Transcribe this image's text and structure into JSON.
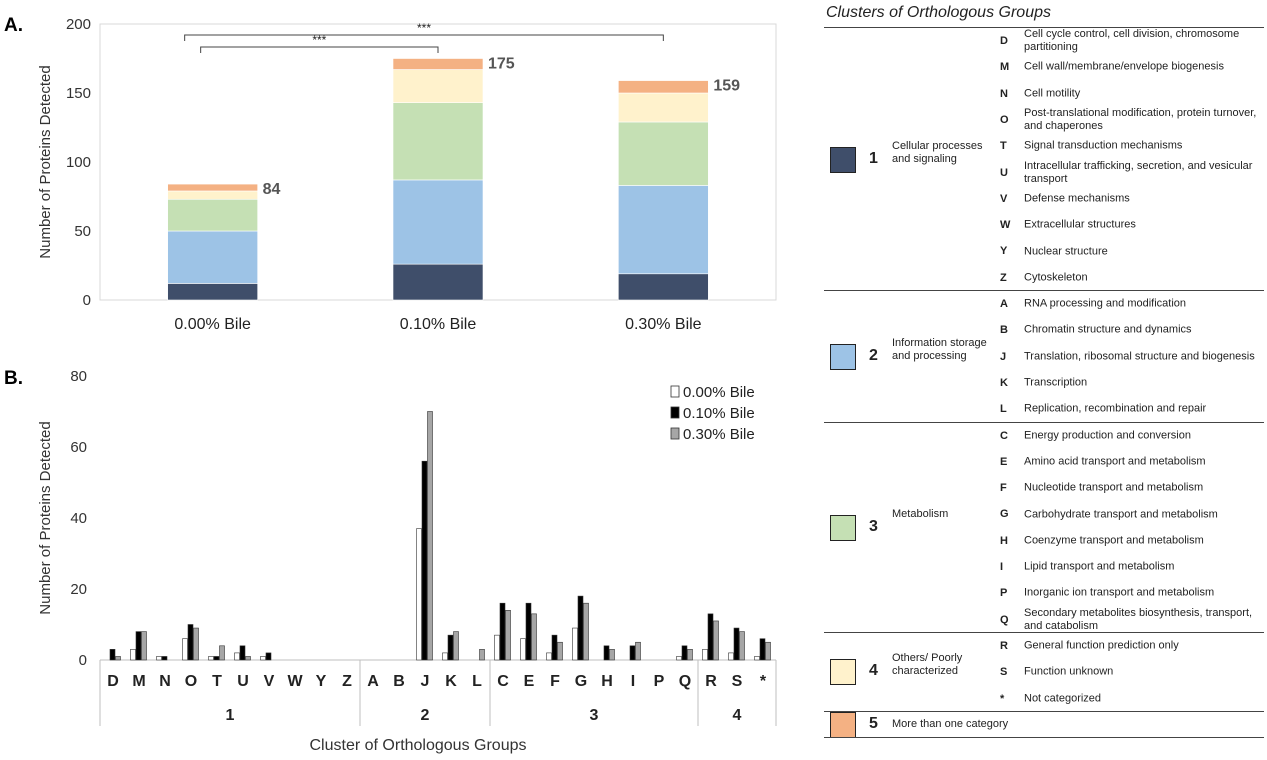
{
  "panel_a_label": "A.",
  "panel_b_label": "B.",
  "chart_data": [
    {
      "type": "bar",
      "stacked": true,
      "categories": [
        "0.00% Bile",
        "0.10% Bile",
        "0.30% Bile"
      ],
      "series": [
        {
          "name": "1",
          "color": "#3f4e6a",
          "values": [
            12,
            26,
            19
          ]
        },
        {
          "name": "2",
          "color": "#9dc3e6",
          "values": [
            38,
            61,
            64
          ]
        },
        {
          "name": "3",
          "color": "#c5e0b4",
          "values": [
            23,
            56,
            46
          ]
        },
        {
          "name": "4",
          "color": "#fff2cc",
          "values": [
            6,
            24,
            21
          ]
        },
        {
          "name": "5",
          "color": "#f4b183",
          "values": [
            5,
            8,
            9
          ]
        }
      ],
      "totals": [
        "84",
        "175",
        "159"
      ],
      "ylabel": "Number of Proteins Detected",
      "ylim": [
        0,
        200
      ],
      "yticks": [
        "0",
        "50",
        "100",
        "150",
        "200"
      ],
      "significance": [
        {
          "from": "0.00% Bile",
          "to": "0.10% Bile",
          "label": "***"
        },
        {
          "from": "0.00% Bile",
          "to": "0.30% Bile",
          "label": "***"
        }
      ]
    },
    {
      "type": "bar",
      "categories": [
        "D",
        "M",
        "N",
        "O",
        "T",
        "U",
        "V",
        "W",
        "Y",
        "Z",
        "A",
        "B",
        "J",
        "K",
        "L",
        "C",
        "E",
        "F",
        "G",
        "H",
        "I",
        "P",
        "Q",
        "R",
        "S",
        "*"
      ],
      "series": [
        {
          "name": "0.00% Bile",
          "fill": "#ffffff",
          "values": [
            0,
            3,
            1,
            6,
            1,
            2,
            1,
            0,
            0,
            0,
            0,
            0,
            37,
            2,
            0,
            7,
            6,
            2,
            9,
            0,
            0,
            0,
            1,
            3,
            2,
            1
          ]
        },
        {
          "name": "0.10% Bile",
          "fill": "#000000",
          "values": [
            3,
            8,
            1,
            10,
            1,
            4,
            2,
            0,
            0,
            0,
            0,
            0,
            56,
            7,
            0,
            16,
            16,
            7,
            18,
            4,
            4,
            0,
            4,
            13,
            9,
            6
          ]
        },
        {
          "name": "0.30% Bile",
          "fill": "#a6a6a6",
          "values": [
            1,
            8,
            0,
            9,
            4,
            1,
            0,
            0,
            0,
            0,
            0,
            0,
            70,
            8,
            3,
            14,
            13,
            5,
            16,
            3,
            5,
            0,
            3,
            11,
            8,
            5
          ]
        }
      ],
      "groups": [
        {
          "label": "1",
          "count": 10
        },
        {
          "label": "2",
          "count": 5
        },
        {
          "label": "3",
          "count": 8
        },
        {
          "label": "4",
          "count": 3
        }
      ],
      "xlabel": "Cluster of Orthologous Groups",
      "ylabel": "Number of Proteins Detected",
      "ylim": [
        0,
        80
      ],
      "yticks": [
        "0",
        "20",
        "40",
        "60",
        "80"
      ],
      "legend": "top-right"
    }
  ],
  "cog_table": {
    "title": "Clusters of Orthologous Groups",
    "groups": [
      {
        "num": "1",
        "name": "Cellular processes and signaling",
        "color": "#3f4e6a",
        "items": [
          {
            "letter": "D",
            "desc": "Cell cycle control, cell division, chromosome partitioning"
          },
          {
            "letter": "M",
            "desc": "Cell wall/membrane/envelope biogenesis"
          },
          {
            "letter": "N",
            "desc": "Cell motility"
          },
          {
            "letter": "O",
            "desc": "Post-translational modification, protein turnover, and chaperones"
          },
          {
            "letter": "T",
            "desc": "Signal transduction mechanisms"
          },
          {
            "letter": "U",
            "desc": "Intracellular trafficking, secretion, and vesicular transport"
          },
          {
            "letter": "V",
            "desc": "Defense mechanisms"
          },
          {
            "letter": "W",
            "desc": "Extracellular structures"
          },
          {
            "letter": "Y",
            "desc": "Nuclear structure"
          },
          {
            "letter": "Z",
            "desc": "Cytoskeleton"
          }
        ]
      },
      {
        "num": "2",
        "name": "Information storage and processing",
        "color": "#9dc3e6",
        "items": [
          {
            "letter": "A",
            "desc": "RNA processing and modification"
          },
          {
            "letter": "B",
            "desc": "Chromatin structure and dynamics"
          },
          {
            "letter": "J",
            "desc": "Translation, ribosomal structure and biogenesis"
          },
          {
            "letter": "K",
            "desc": "Transcription"
          },
          {
            "letter": "L",
            "desc": "Replication, recombination and repair"
          }
        ]
      },
      {
        "num": "3",
        "name": "Metabolism",
        "color": "#c5e0b4",
        "items": [
          {
            "letter": "C",
            "desc": "Energy production and conversion"
          },
          {
            "letter": "E",
            "desc": "Amino acid transport and metabolism"
          },
          {
            "letter": "F",
            "desc": "Nucleotide transport and metabolism"
          },
          {
            "letter": "G",
            "desc": "Carbohydrate transport and metabolism"
          },
          {
            "letter": "H",
            "desc": "Coenzyme transport and metabolism"
          },
          {
            "letter": "I",
            "desc": "Lipid transport and metabolism"
          },
          {
            "letter": "P",
            "desc": "Inorganic ion transport and metabolism"
          },
          {
            "letter": "Q",
            "desc": "Secondary metabolites biosynthesis, transport, and catabolism"
          }
        ]
      },
      {
        "num": "4",
        "name": "Others/ Poorly characterized",
        "color": "#fff2cc",
        "items": [
          {
            "letter": "R",
            "desc": "General function prediction only"
          },
          {
            "letter": "S",
            "desc": "Function unknown"
          },
          {
            "letter": "*",
            "desc": "Not categorized"
          }
        ]
      },
      {
        "num": "5",
        "name": "More than one category",
        "color": "#f4b183",
        "items": []
      }
    ]
  }
}
